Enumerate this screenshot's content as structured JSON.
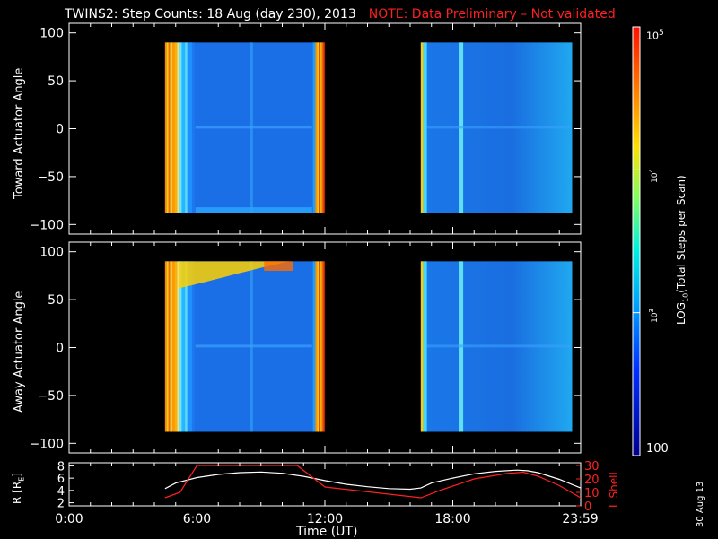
{
  "title": "TWINS2: Step Counts: 18 Aug (day 230), 2013",
  "note": "NOTE: Data Preliminary – Not validated",
  "date_stamp": "30 Aug 13",
  "colors": {
    "background": "#000000",
    "note": "#ff2020",
    "r_line": "#ffffff",
    "lshell_line": "#ff2020"
  },
  "chart_data": [
    {
      "type": "heatmap",
      "name": "toward",
      "ylabel": "Toward Actuator Angle",
      "yticks": [
        "100",
        "50",
        "0",
        "−50",
        "−100"
      ],
      "ytick_values": [
        100,
        50,
        0,
        -50,
        -100
      ],
      "ylim": [
        -110,
        110
      ],
      "xlim": [
        0,
        24
      ],
      "data_blocks": [
        [
          4.5,
          12.0
        ],
        [
          16.5,
          23.6
        ]
      ],
      "angle_range": [
        -88,
        90
      ]
    },
    {
      "type": "heatmap",
      "name": "away",
      "ylabel": "Away Actuator Angle",
      "yticks": [
        "100",
        "50",
        "0",
        "−50",
        "−100"
      ],
      "ytick_values": [
        100,
        50,
        0,
        -50,
        -100
      ],
      "ylim": [
        -110,
        110
      ],
      "xlim": [
        0,
        24
      ],
      "data_blocks": [
        [
          4.5,
          12.0
        ],
        [
          16.5,
          23.6
        ]
      ],
      "angle_range": [
        -88,
        90
      ]
    },
    {
      "type": "line",
      "name": "orbit",
      "ylabel": "R [R",
      "ylabel_sub": "E",
      "ylabel_end": "]",
      "y_left_ticks": [
        "8",
        "6",
        "4",
        "2"
      ],
      "y_left_values": [
        8,
        6,
        4,
        2
      ],
      "y_right_label": "L Shell",
      "y_right_ticks": [
        "30",
        "20",
        "10",
        "0"
      ],
      "y_right_values": [
        30,
        20,
        10,
        0
      ],
      "xlabel": "Time (UT)",
      "xticks": [
        "0:00",
        "6:00",
        "12:00",
        "18:00",
        "23:59"
      ],
      "xtick_values": [
        0,
        6,
        12,
        18,
        23.98
      ],
      "xlim": [
        0,
        24
      ],
      "series": [
        {
          "axis": "left",
          "x": [
            4.5,
            5,
            6,
            7,
            8,
            9,
            10,
            11,
            12,
            13,
            14,
            15,
            16,
            16.5,
            17,
            18,
            19,
            20,
            21,
            21.5,
            22,
            23,
            24
          ],
          "y": [
            4.3,
            5.2,
            6.1,
            6.6,
            6.9,
            7.0,
            6.8,
            6.3,
            5.6,
            5.0,
            4.6,
            4.3,
            4.2,
            4.4,
            5.2,
            6.0,
            6.7,
            7.1,
            7.3,
            7.2,
            6.9,
            5.8,
            4.4
          ]
        },
        {
          "axis": "right",
          "x": [
            4.5,
            5.2,
            6.0,
            10.7,
            12.0,
            16.5,
            17.5,
            19,
            20.5,
            21.3,
            22,
            23,
            24
          ],
          "y": [
            6,
            10,
            30,
            30,
            14,
            6,
            12,
            20,
            24,
            25,
            22,
            15,
            6
          ]
        }
      ]
    }
  ],
  "colorbar": {
    "label_pre": "LOG",
    "label_sub": "10",
    "label_post": "(Total Steps per Scan)",
    "labels": [
      {
        "base": "10",
        "exp": "5",
        "value": 100000
      },
      {
        "base": "10",
        "exp": "4",
        "value": 10000
      },
      {
        "base": "10",
        "exp": "3",
        "value": 1000
      }
    ],
    "bottom_label": "100",
    "range": [
      100,
      100000
    ]
  }
}
